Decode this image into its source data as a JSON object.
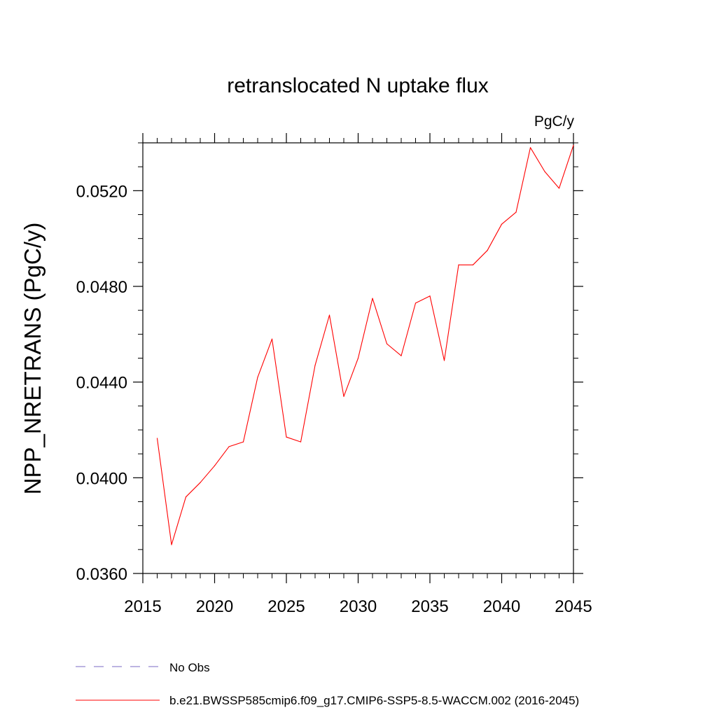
{
  "chart_data": {
    "type": "line",
    "title": "retranslocated N uptake flux",
    "units_label": "PgC/y",
    "xlabel": "",
    "ylabel": "NPP_NRETRANS  (PgC/y)",
    "xlim": [
      2015,
      2045
    ],
    "ylim": [
      0.036,
      0.054
    ],
    "x_ticks": [
      2015,
      2020,
      2025,
      2030,
      2035,
      2040,
      2045
    ],
    "x_tick_labels": [
      "2015",
      "2020",
      "2025",
      "2030",
      "2035",
      "2040",
      "2045"
    ],
    "y_ticks": [
      0.036,
      0.04,
      0.044,
      0.048,
      0.052
    ],
    "y_tick_labels": [
      "0.0360",
      "0.0400",
      "0.0440",
      "0.0480",
      "0.0520"
    ],
    "grid": false,
    "legend_position": "bottom",
    "series": [
      {
        "name": "b.e21.BWSSP585cmip6.f09_g17.CMIP6-SSP5-8.5-WACCM.002 (2016-2045)",
        "color": "#ff0000",
        "dash": "solid",
        "x": [
          2016,
          2017,
          2018,
          2019,
          2020,
          2021,
          2022,
          2023,
          2024,
          2025,
          2026,
          2027,
          2028,
          2029,
          2030,
          2031,
          2032,
          2033,
          2034,
          2035,
          2036,
          2037,
          2038,
          2039,
          2040,
          2041,
          2042,
          2043,
          2044,
          2045
        ],
        "values": [
          0.04165,
          0.0372,
          0.0392,
          0.0398,
          0.0405,
          0.0413,
          0.0415,
          0.0442,
          0.0458,
          0.0417,
          0.0415,
          0.0447,
          0.0468,
          0.0434,
          0.045,
          0.0475,
          0.0456,
          0.0451,
          0.0473,
          0.0476,
          0.0449,
          0.0489,
          0.0489,
          0.0495,
          0.0506,
          0.0511,
          0.0538,
          0.0528,
          0.0521,
          0.0539
        ]
      },
      {
        "name": "No Obs",
        "color": "#7b68c4",
        "dash": "dashed",
        "x": [],
        "values": []
      }
    ]
  }
}
